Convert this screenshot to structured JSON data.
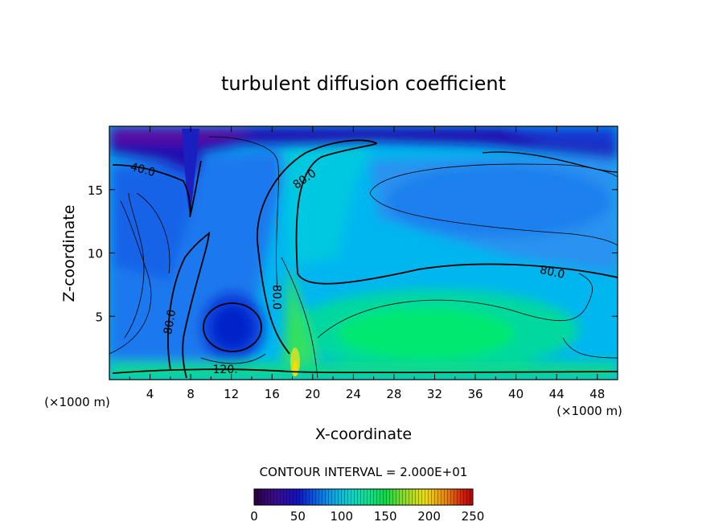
{
  "chart_data": {
    "type": "heatmap",
    "title": "turbulent diffusion coefficient",
    "xlabel": "X-coordinate",
    "ylabel": "Z-coordinate",
    "x_unit_left": "(×1000 m)",
    "x_unit_right": "(×1000 m)",
    "xlim": [
      0,
      50
    ],
    "ylim": [
      0,
      20
    ],
    "x_ticks": [
      4,
      8,
      12,
      16,
      20,
      24,
      28,
      32,
      36,
      40,
      44,
      48
    ],
    "y_ticks": [
      5,
      10,
      15
    ],
    "contour_interval_text": "CONTOUR INTERVAL = 2.000E+01",
    "colorbar": {
      "min": 0,
      "max": 250,
      "ticks": [
        0,
        50,
        100,
        150,
        200,
        250
      ],
      "colors": [
        "#2a0040",
        "#3a0a9a",
        "#1010d0",
        "#0060f0",
        "#00a8f0",
        "#00d8d0",
        "#00e890",
        "#00e040",
        "#80e020",
        "#f0e000",
        "#f08000",
        "#e02000",
        "#c00000"
      ]
    },
    "contour_labels": [
      {
        "text": "40.0",
        "x": 3.2,
        "z": 16.3
      },
      {
        "text": "80.0",
        "x": 19.4,
        "z": 15.6
      },
      {
        "text": "80.0",
        "x": 43.5,
        "z": 8.2
      },
      {
        "text": "80.0",
        "x": 6.3,
        "z": 4.5
      },
      {
        "text": "80.0",
        "x": 16.1,
        "z": 6.5
      },
      {
        "text": "120.",
        "x": 11.4,
        "z": 0.5
      }
    ]
  }
}
